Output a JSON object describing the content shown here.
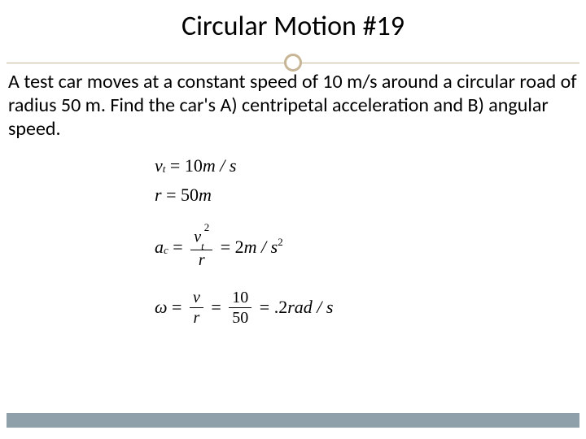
{
  "title": "Circular Motion #19",
  "problem": "A test car moves at a constant speed of 10 m/s around a circular road of radius 50 m. Find the car's A) centripetal acceleration and B) angular speed.",
  "given": {
    "vt_label": "v",
    "vt_sub": "t",
    "vt_value": "10",
    "vt_unit": "m / s",
    "r_label": "r",
    "r_value": "50",
    "r_unit": "m"
  },
  "solution": {
    "ac_label": "a",
    "ac_sub": "c",
    "ac_num_sym": "v",
    "ac_num_sub": "t",
    "ac_num_sup": "2",
    "ac_den": "r",
    "ac_value": "2",
    "ac_unit_m": "m / s",
    "ac_unit_sup": "2",
    "omega_label": "ω",
    "omega_num1": "v",
    "omega_den1": "r",
    "omega_num2": "10",
    "omega_den2": "50",
    "omega_value": ".2",
    "omega_unit": "rad / s"
  },
  "colors": {
    "accent": "#c7b596",
    "footer": "#8fa0ab",
    "text": "#000000",
    "background": "#ffffff"
  }
}
